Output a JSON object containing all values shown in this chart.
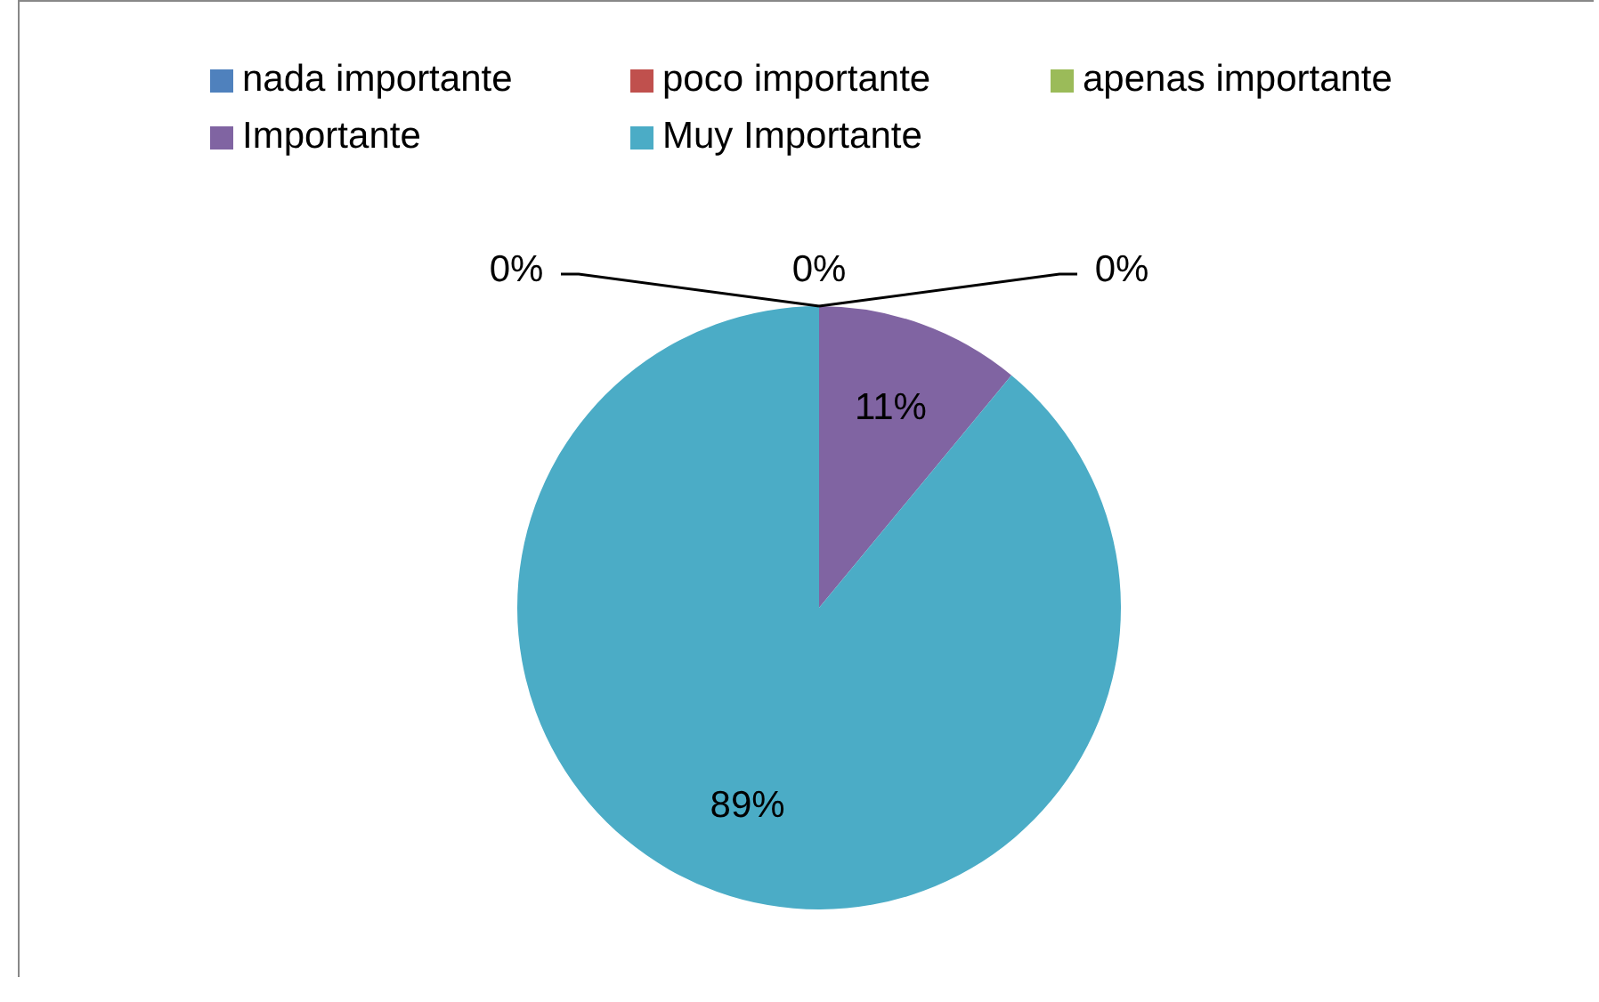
{
  "chart_data": {
    "type": "pie",
    "categories": [
      "nada importante",
      "poco importante",
      "apenas importante",
      "Importante",
      "Muy Importante"
    ],
    "values": [
      0,
      0,
      0,
      11,
      89
    ],
    "colors": [
      "#4f81bd",
      "#c0504d",
      "#9bbb59",
      "#8064a2",
      "#4bacc6"
    ],
    "value_labels": [
      "0%",
      "0%",
      "0%",
      "11%",
      "89%"
    ],
    "legend": "top"
  }
}
